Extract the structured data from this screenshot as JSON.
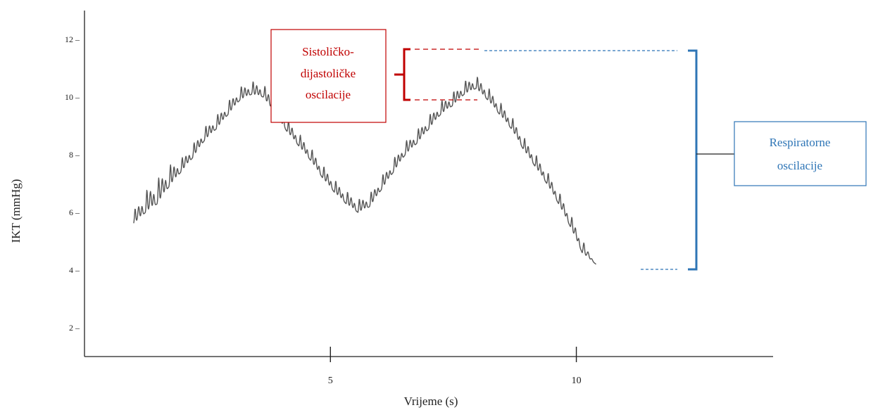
{
  "chart_data": {
    "type": "line",
    "xlabel": "Vrijeme (s)",
    "ylabel": "IKT (mmHg)",
    "xlim": [
      0,
      14
    ],
    "ylim": [
      1,
      13
    ],
    "xticks": [
      {
        "value": 5,
        "label": "5"
      },
      {
        "value": 10,
        "label": "10"
      }
    ],
    "yticks": [
      {
        "value": 2,
        "label": "2 –"
      },
      {
        "value": 4,
        "label": "4 –"
      },
      {
        "value": 6,
        "label": "6 –"
      },
      {
        "value": 8,
        "label": "8 –"
      },
      {
        "value": 10,
        "label": "10 –"
      },
      {
        "value": 12,
        "label": "12 –"
      }
    ],
    "grid": false,
    "series": [
      {
        "name": "",
        "color": "#555555",
        "x": [
          1.0,
          1.24,
          1.48,
          1.72,
          1.96,
          2.2,
          2.44,
          2.68,
          2.92,
          3.16,
          3.4,
          3.64,
          3.88,
          4.12,
          4.36,
          4.6,
          4.84,
          5.08,
          5.32,
          5.56,
          5.8,
          6.04,
          6.28,
          6.52,
          6.76,
          7.0,
          7.24,
          7.48,
          7.72,
          7.96,
          8.2,
          8.44,
          8.68,
          8.92,
          9.16,
          9.4,
          9.64,
          9.88,
          10.12,
          10.4
        ],
        "y": [
          5.6,
          6.0,
          6.3,
          6.9,
          7.4,
          7.9,
          8.5,
          8.9,
          9.4,
          9.9,
          10.1,
          10.0,
          9.4,
          8.8,
          8.3,
          7.8,
          7.2,
          6.7,
          6.3,
          6.0,
          6.2,
          6.8,
          7.4,
          8.0,
          8.4,
          8.9,
          9.4,
          9.7,
          10.1,
          10.3,
          9.9,
          9.4,
          8.9,
          8.2,
          7.6,
          7.0,
          6.3,
          5.5,
          4.6,
          4.2
        ]
      }
    ],
    "amplitude_range": [
      0.8,
      1.5
    ],
    "annotations": {
      "cardiac": {
        "text_lines": [
          "Sistoličko-",
          "dijastoličke",
          "oscilacije"
        ],
        "color": "#c00000",
        "value_range": [
          10.9,
          9.6
        ]
      },
      "respiratory": {
        "text_lines": [
          "Respiratorne",
          "oscilacije"
        ],
        "color": "#2e75b6",
        "value_range": [
          11.2,
          4.1
        ]
      }
    }
  }
}
